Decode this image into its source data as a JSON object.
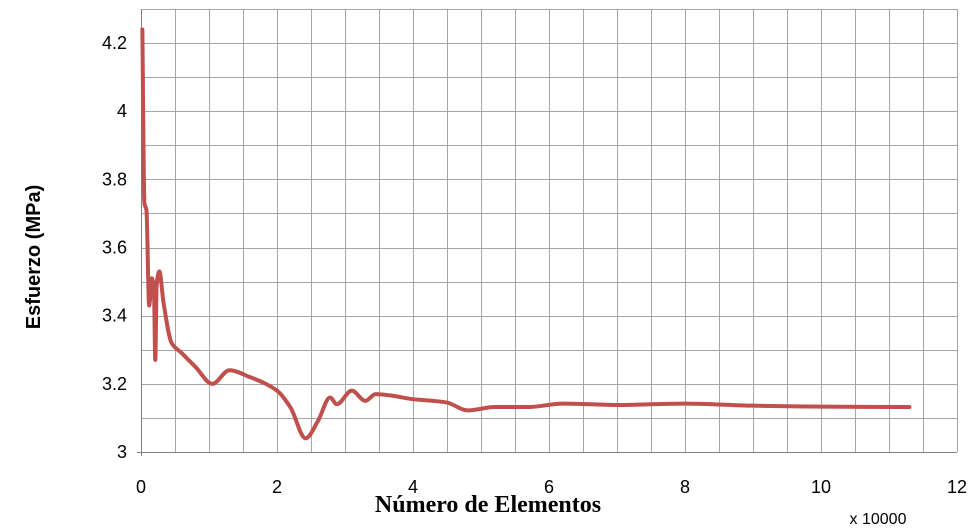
{
  "chart_data": {
    "type": "line",
    "title": "",
    "xlabel": "Número de Elementos",
    "ylabel": "Esfuerzo (MPa)",
    "x_multiplier_label": "x 10000",
    "xlim": [
      0,
      12
    ],
    "ylim": [
      3,
      4.3
    ],
    "x_ticks": [
      0,
      2,
      4,
      6,
      8,
      10,
      12
    ],
    "x_tick_labels": [
      "0",
      "2",
      "4",
      "6",
      "8",
      "10",
      "12"
    ],
    "x_minor_step": 0.5,
    "y_ticks": [
      3,
      3.2,
      3.4,
      3.6,
      3.8,
      4,
      4.2
    ],
    "y_tick_labels": [
      "3",
      "3.2",
      "3.4",
      "3.6",
      "3.8",
      "4",
      "4.2"
    ],
    "y_minor_step": 0.1,
    "grid": true,
    "legend": "none",
    "series": [
      {
        "color": "#c0504d",
        "x": [
          0.02,
          0.05,
          0.08,
          0.12,
          0.16,
          0.19,
          0.21,
          0.23,
          0.27,
          0.33,
          0.45,
          0.6,
          0.8,
          1.05,
          1.3,
          1.6,
          2.0,
          2.2,
          2.42,
          2.6,
          2.78,
          2.88,
          3.1,
          3.3,
          3.45,
          3.7,
          4.0,
          4.3,
          4.5,
          4.8,
          5.2,
          5.7,
          6.2,
          7.0,
          8.0,
          9.0,
          10.0,
          11.3
        ],
        "values": [
          4.24,
          3.73,
          3.71,
          3.43,
          3.51,
          3.48,
          3.27,
          3.49,
          3.53,
          3.44,
          3.32,
          3.29,
          3.25,
          3.2,
          3.24,
          3.22,
          3.18,
          3.13,
          3.04,
          3.09,
          3.16,
          3.14,
          3.18,
          3.15,
          3.17,
          3.165,
          3.155,
          3.15,
          3.145,
          3.122,
          3.132,
          3.132,
          3.142,
          3.138,
          3.142,
          3.136,
          3.133,
          3.132
        ]
      }
    ]
  }
}
